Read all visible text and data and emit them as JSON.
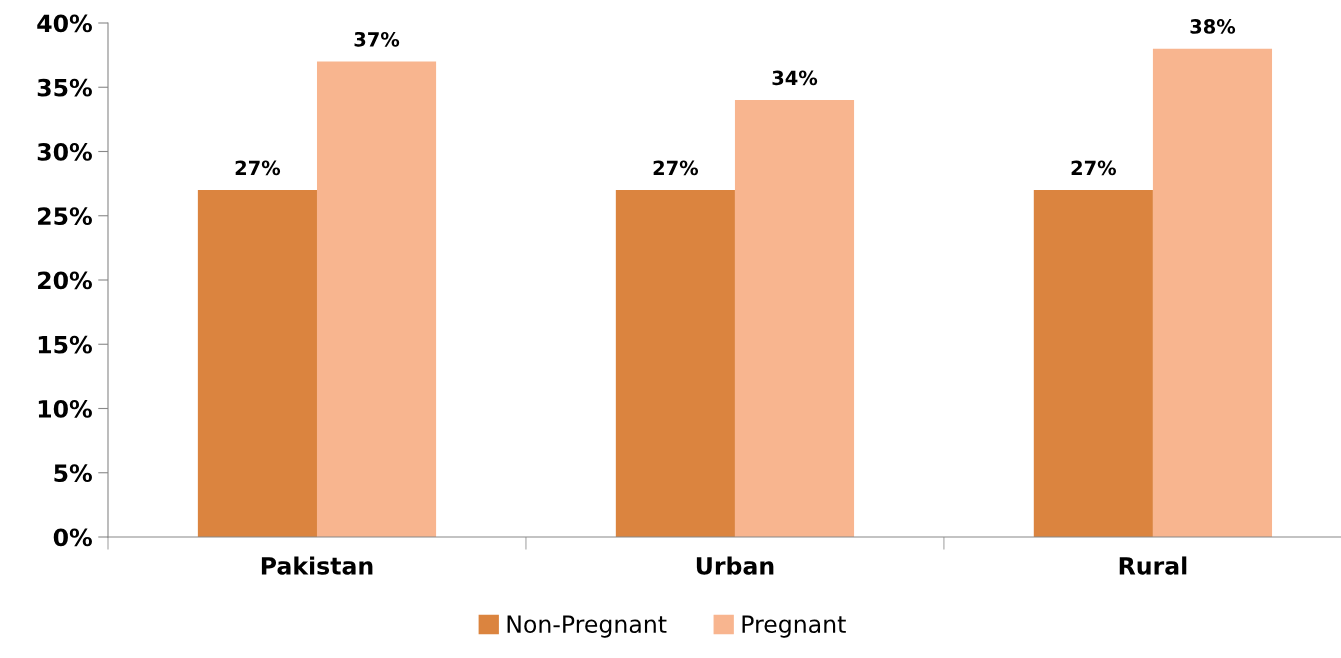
{
  "chart_data": {
    "type": "bar",
    "categories": [
      "Pakistan",
      "Urban",
      "Rural"
    ],
    "series": [
      {
        "name": "Non-Pregnant",
        "color": "#db843f",
        "values": [
          27,
          27,
          27
        ],
        "value_labels": [
          "27%",
          "27%",
          "27%"
        ]
      },
      {
        "name": "Pregnant",
        "color": "#f8b58f",
        "values": [
          37,
          34,
          38
        ],
        "value_labels": [
          "37%",
          "34%",
          "38%"
        ]
      }
    ],
    "ylim": [
      0,
      40
    ],
    "yticks": [
      {
        "value": 0,
        "label": "0%"
      },
      {
        "value": 5,
        "label": "5%"
      },
      {
        "value": 10,
        "label": "10%"
      },
      {
        "value": 15,
        "label": "15%"
      },
      {
        "value": 20,
        "label": "20%"
      },
      {
        "value": 25,
        "label": "25%"
      },
      {
        "value": 30,
        "label": "30%"
      },
      {
        "value": 35,
        "label": "35%"
      },
      {
        "value": 40,
        "label": "40%"
      }
    ],
    "grid": false,
    "legend": "bottom"
  }
}
